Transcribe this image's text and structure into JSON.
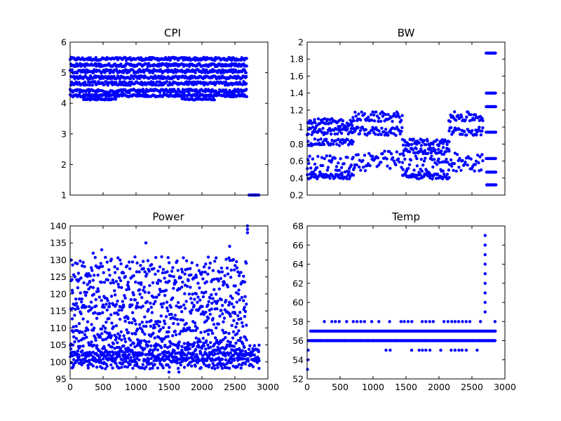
{
  "figure": {
    "background": "#ffffff",
    "marker_color": "#0000ff"
  },
  "chart_data": [
    {
      "type": "scatter",
      "title": "CPI",
      "xlim": [
        0,
        3000
      ],
      "ylim": [
        1,
        6
      ],
      "xticks": [],
      "yticks": [
        1,
        2,
        3,
        4,
        5,
        6
      ],
      "bands": [
        {
          "y": 5.45,
          "x_range": [
            0,
            2680
          ],
          "spread": 0.05
        },
        {
          "y": 5.25,
          "x_range": [
            0,
            2680
          ],
          "spread": 0.05
        },
        {
          "y": 5.05,
          "x_range": [
            0,
            2680
          ],
          "spread": 0.06
        },
        {
          "y": 4.85,
          "x_range": [
            0,
            2680
          ],
          "spread": 0.05
        },
        {
          "y": 4.65,
          "x_range": [
            0,
            2680
          ],
          "spread": 0.06
        },
        {
          "y": 4.4,
          "x_range": [
            0,
            2680
          ],
          "spread": 0.06
        },
        {
          "y": 4.25,
          "x_range": [
            0,
            2680
          ],
          "spread": 0.04
        },
        {
          "y": 4.13,
          "x_range": [
            200,
            700
          ],
          "spread": 0.02
        },
        {
          "y": 4.13,
          "x_range": [
            1700,
            2200
          ],
          "spread": 0.02
        },
        {
          "y": 1.0,
          "x_range": [
            2720,
            2860
          ],
          "spread": 0.0
        }
      ]
    },
    {
      "type": "scatter",
      "title": "BW",
      "xlim": [
        0,
        3000
      ],
      "ylim": [
        0.2,
        2.0
      ],
      "xticks": [],
      "yticks": [
        0.2,
        0.4,
        0.6,
        0.8,
        1.0,
        1.2,
        1.4,
        1.6,
        1.8,
        2.0
      ],
      "bands": [
        {
          "y": 1.05,
          "x_range": [
            0,
            700
          ],
          "spread": 0.05
        },
        {
          "y": 0.95,
          "x_range": [
            0,
            700
          ],
          "spread": 0.04
        },
        {
          "y": 0.82,
          "x_range": [
            0,
            700
          ],
          "spread": 0.04
        },
        {
          "y": 0.55,
          "x_range": [
            0,
            700
          ],
          "spread": 0.12
        },
        {
          "y": 0.42,
          "x_range": [
            0,
            700
          ],
          "spread": 0.03
        },
        {
          "y": 1.12,
          "x_range": [
            700,
            1450
          ],
          "spread": 0.06
        },
        {
          "y": 0.95,
          "x_range": [
            700,
            1450
          ],
          "spread": 0.05
        },
        {
          "y": 0.6,
          "x_range": [
            700,
            1450
          ],
          "spread": 0.12
        },
        {
          "y": 0.82,
          "x_range": [
            1450,
            2150
          ],
          "spread": 0.04
        },
        {
          "y": 0.72,
          "x_range": [
            1450,
            2150
          ],
          "spread": 0.04
        },
        {
          "y": 0.55,
          "x_range": [
            1450,
            2150
          ],
          "spread": 0.12
        },
        {
          "y": 0.42,
          "x_range": [
            1450,
            2150
          ],
          "spread": 0.03
        },
        {
          "y": 1.12,
          "x_range": [
            2150,
            2680
          ],
          "spread": 0.06
        },
        {
          "y": 0.95,
          "x_range": [
            2150,
            2680
          ],
          "spread": 0.05
        },
        {
          "y": 0.6,
          "x_range": [
            2150,
            2680
          ],
          "spread": 0.12
        },
        {
          "y": 1.87,
          "x_range": [
            2720,
            2860
          ],
          "spread": 0.0
        },
        {
          "y": 1.4,
          "x_range": [
            2720,
            2860
          ],
          "spread": 0.0
        },
        {
          "y": 1.24,
          "x_range": [
            2720,
            2860
          ],
          "spread": 0.0
        },
        {
          "y": 0.94,
          "x_range": [
            2720,
            2860
          ],
          "spread": 0.0
        },
        {
          "y": 0.63,
          "x_range": [
            2720,
            2860
          ],
          "spread": 0.0
        },
        {
          "y": 0.47,
          "x_range": [
            2720,
            2860
          ],
          "spread": 0.0
        },
        {
          "y": 0.32,
          "x_range": [
            2720,
            2860
          ],
          "spread": 0.0
        }
      ]
    },
    {
      "type": "scatter",
      "title": "Power",
      "xlim": [
        0,
        3000
      ],
      "ylim": [
        95,
        140
      ],
      "xticks": [
        0,
        500,
        1000,
        1500,
        2000,
        2500,
        3000
      ],
      "yticks": [
        95,
        100,
        105,
        110,
        115,
        120,
        125,
        130,
        135,
        140
      ],
      "bands": [
        {
          "y": 99.5,
          "x_range": [
            0,
            2870
          ],
          "spread": 1.5
        },
        {
          "y": 101.5,
          "x_range": [
            0,
            2870
          ],
          "spread": 1.2
        },
        {
          "y": 103.5,
          "x_range": [
            0,
            2870
          ],
          "spread": 1.5
        },
        {
          "y": 107,
          "x_range": [
            0,
            2680
          ],
          "spread": 2.5
        },
        {
          "y": 113,
          "x_range": [
            0,
            2680
          ],
          "spread": 3.5
        },
        {
          "y": 120,
          "x_range": [
            0,
            2680
          ],
          "spread": 4
        },
        {
          "y": 127,
          "x_range": [
            0,
            2680
          ],
          "spread": 4
        }
      ],
      "extra_points": [
        [
          2690,
          138
        ],
        [
          2690,
          139
        ],
        [
          2690,
          140
        ],
        [
          1150,
          135
        ],
        [
          2420,
          134
        ],
        [
          480,
          133
        ],
        [
          350,
          132
        ],
        [
          1500,
          97
        ],
        [
          1650,
          97
        ],
        [
          2860,
          101
        ],
        [
          2860,
          103
        ]
      ]
    },
    {
      "type": "scatter",
      "title": "Temp",
      "xlim": [
        0,
        3000
      ],
      "ylim": [
        52,
        68
      ],
      "xticks": [
        0,
        500,
        1000,
        1500,
        2000,
        2500,
        3000
      ],
      "yticks": [
        52,
        54,
        56,
        58,
        60,
        62,
        64,
        66,
        68
      ],
      "bands": [
        {
          "y": 57,
          "x_range": [
            50,
            2860
          ],
          "spread": 0.0
        },
        {
          "y": 56,
          "x_range": [
            50,
            2860
          ],
          "spread": 0.0
        },
        {
          "y": 58,
          "x_range": [
            100,
            2860
          ],
          "spread": 0.0,
          "sparse": true
        },
        {
          "y": 55,
          "x_range": [
            1200,
            2600
          ],
          "spread": 0.0,
          "sparse": true
        }
      ],
      "extra_points": [
        [
          5,
          53
        ],
        [
          10,
          54
        ],
        [
          15,
          55
        ],
        [
          20,
          56
        ],
        [
          2700,
          59
        ],
        [
          2700,
          60
        ],
        [
          2700,
          61
        ],
        [
          2700,
          62
        ],
        [
          2700,
          63
        ],
        [
          2700,
          64
        ],
        [
          2700,
          65
        ],
        [
          2700,
          66
        ],
        [
          2700,
          67
        ]
      ]
    }
  ]
}
